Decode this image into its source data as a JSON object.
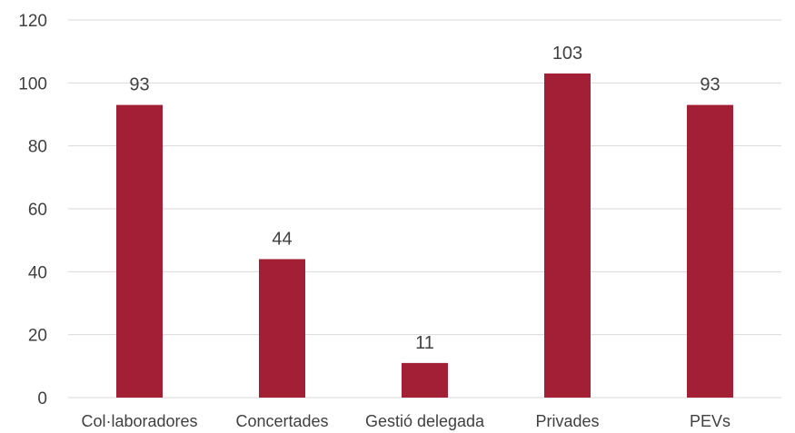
{
  "chart_data": {
    "type": "bar",
    "categories": [
      "Col·laboradores",
      "Concertades",
      "Gestió delegada",
      "Privades",
      "PEVs"
    ],
    "values": [
      93,
      44,
      11,
      103,
      93
    ],
    "data_labels": [
      "93",
      "44",
      "11",
      "103",
      "93"
    ],
    "title": "",
    "xlabel": "",
    "ylabel": "",
    "ylim": [
      0,
      120
    ],
    "y_ticks": [
      0,
      20,
      40,
      60,
      80,
      100,
      120
    ],
    "y_tick_labels": [
      "0",
      "20",
      "40",
      "60",
      "80",
      "100",
      "120"
    ],
    "grid": true,
    "legend": "none",
    "colors": {
      "bar": "#a31f36",
      "grid": "#d9d9d9",
      "text": "#404040"
    }
  }
}
